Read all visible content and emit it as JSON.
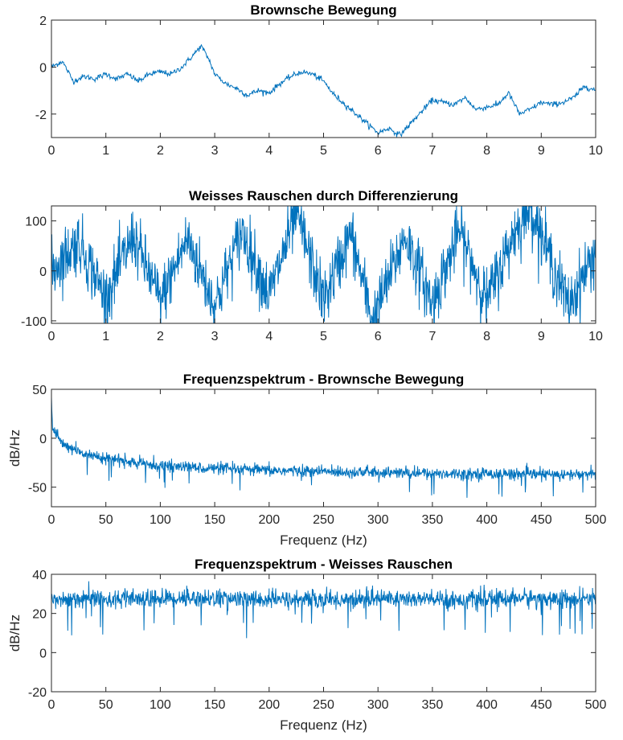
{
  "figure": {
    "background": "#ffffff",
    "line_color": "#0072BD",
    "axis_color": "#262626"
  },
  "chart_data": [
    {
      "type": "line",
      "title": "Brownsche Bewegung",
      "xlabel": "",
      "ylabel": "",
      "xlim": [
        0,
        10
      ],
      "ylim": [
        -3,
        2
      ],
      "xticks": [
        0,
        1,
        2,
        3,
        4,
        5,
        6,
        7,
        8,
        9,
        10
      ],
      "xtick_labels": [
        "0",
        "1",
        "2",
        "3",
        "4",
        "5",
        "6",
        "7",
        "8",
        "9",
        "10"
      ],
      "yticks": [
        -2,
        0,
        2
      ],
      "ytick_labels": [
        "-2",
        "0",
        "2"
      ],
      "grid": false,
      "series": [
        {
          "color": "#0072BD",
          "x": [
            0,
            0.2,
            0.4,
            0.6,
            0.8,
            1.0,
            1.2,
            1.4,
            1.6,
            1.8,
            2.0,
            2.2,
            2.4,
            2.6,
            2.75,
            2.9,
            3.0,
            3.2,
            3.4,
            3.6,
            3.8,
            4.0,
            4.2,
            4.4,
            4.6,
            4.8,
            5.0,
            5.2,
            5.4,
            5.6,
            5.8,
            6.0,
            6.2,
            6.4,
            6.6,
            6.8,
            7.0,
            7.2,
            7.4,
            7.6,
            7.8,
            8.0,
            8.2,
            8.4,
            8.6,
            8.8,
            9.0,
            9.2,
            9.4,
            9.6,
            9.8,
            10.0
          ],
          "y": [
            0.0,
            0.25,
            -0.6,
            -0.4,
            -0.5,
            -0.3,
            -0.5,
            -0.3,
            -0.6,
            -0.3,
            -0.2,
            -0.3,
            0.0,
            0.5,
            0.9,
            0.3,
            -0.3,
            -0.7,
            -0.9,
            -1.2,
            -1.0,
            -1.1,
            -0.7,
            -0.4,
            -0.2,
            -0.3,
            -0.6,
            -1.2,
            -1.6,
            -2.0,
            -2.4,
            -2.8,
            -2.6,
            -2.9,
            -2.4,
            -1.9,
            -1.4,
            -1.5,
            -1.6,
            -1.3,
            -1.8,
            -1.7,
            -1.6,
            -1.1,
            -2.0,
            -1.8,
            -1.5,
            -1.6,
            -1.5,
            -1.3,
            -0.8,
            -1.0
          ]
        }
      ]
    },
    {
      "type": "line",
      "title": "Weisses Rauschen durch Differenzierung",
      "xlabel": "",
      "ylabel": "",
      "xlim": [
        0,
        10
      ],
      "ylim": [
        -105,
        130
      ],
      "xticks": [
        0,
        1,
        2,
        3,
        4,
        5,
        6,
        7,
        8,
        9,
        10
      ],
      "xtick_labels": [
        "0",
        "1",
        "2",
        "3",
        "4",
        "5",
        "6",
        "7",
        "8",
        "9",
        "10"
      ],
      "yticks": [
        -100,
        0,
        100
      ],
      "ytick_labels": [
        "-100",
        "0",
        "100"
      ],
      "grid": false,
      "series": [
        {
          "color": "#0072BD",
          "x": [
            0,
            0.5,
            1.0,
            1.5,
            2.0,
            2.5,
            3.0,
            3.5,
            4.0,
            4.5,
            5.0,
            5.5,
            5.9,
            6.5,
            7.0,
            7.5,
            8.0,
            8.5,
            8.8,
            9.5,
            10.0
          ],
          "y": [
            0,
            60,
            -55,
            70,
            -60,
            65,
            -70,
            80,
            -50,
            115,
            -60,
            75,
            -100,
            70,
            -65,
            80,
            -60,
            75,
            130,
            -70,
            40
          ],
          "noise_std": 30
        }
      ]
    },
    {
      "type": "line",
      "title": "Frequenzspektrum - Brownsche Bewegung",
      "xlabel": "Frequenz (Hz)",
      "ylabel": "dB/Hz",
      "xlim": [
        0,
        500
      ],
      "ylim": [
        -70,
        50
      ],
      "xticks": [
        0,
        50,
        100,
        150,
        200,
        250,
        300,
        350,
        400,
        450,
        500
      ],
      "xtick_labels": [
        "0",
        "50",
        "100",
        "150",
        "200",
        "250",
        "300",
        "350",
        "400",
        "450",
        "500"
      ],
      "yticks": [
        -50,
        0,
        50
      ],
      "ytick_labels": [
        "-50",
        "0",
        "50"
      ],
      "grid": false,
      "series": [
        {
          "color": "#0072BD",
          "x": [
            0,
            1,
            5,
            10,
            20,
            30,
            50,
            75,
            100,
            150,
            200,
            250,
            300,
            350,
            400,
            450,
            500
          ],
          "y": [
            42,
            10,
            2,
            -5,
            -12,
            -16,
            -20,
            -25,
            -28,
            -31,
            -33,
            -34,
            -35,
            -36,
            -36,
            -37,
            -37
          ],
          "noise_std": 5
        }
      ]
    },
    {
      "type": "line",
      "title": "Frequenzspektrum - Weisses Rauschen",
      "xlabel": "Frequenz (Hz)",
      "ylabel": "dB/Hz",
      "xlim": [
        0,
        500
      ],
      "ylim": [
        -20,
        40
      ],
      "xticks": [
        0,
        50,
        100,
        150,
        200,
        250,
        300,
        350,
        400,
        450,
        500
      ],
      "xtick_labels": [
        "0",
        "50",
        "100",
        "150",
        "200",
        "250",
        "300",
        "350",
        "400",
        "450",
        "500"
      ],
      "yticks": [
        -20,
        0,
        20,
        40
      ],
      "ytick_labels": [
        "-20",
        "0",
        "20",
        "40"
      ],
      "grid": false,
      "series": [
        {
          "color": "#0072BD",
          "x": [
            0,
            40,
            60,
            125,
            200,
            275,
            300,
            355,
            400,
            425,
            500
          ],
          "y": [
            27,
            28,
            27,
            28,
            27,
            27,
            28,
            27,
            27,
            28,
            27
          ],
          "noise_std": 4
        }
      ]
    }
  ]
}
